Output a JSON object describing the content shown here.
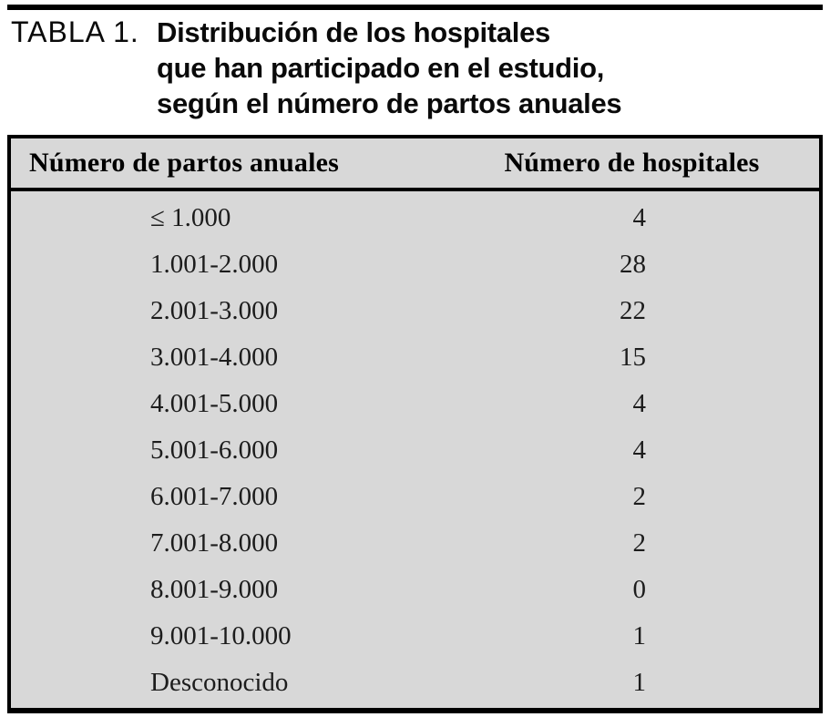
{
  "caption": {
    "label": "TABLA 1.",
    "title_lines": [
      "Distribución de los hospitales",
      "que han participado en el estudio,",
      "según el número de partos anuales"
    ]
  },
  "table": {
    "headers": [
      "Número de partos anuales",
      "Número de hospitales"
    ],
    "rows": [
      {
        "range": "≤ 1.000",
        "hospitals": 4
      },
      {
        "range": "1.001-2.000",
        "hospitals": 28
      },
      {
        "range": "2.001-3.000",
        "hospitals": 22
      },
      {
        "range": "3.001-4.000",
        "hospitals": 15
      },
      {
        "range": "4.001-5.000",
        "hospitals": 4
      },
      {
        "range": "5.001-6.000",
        "hospitals": 4
      },
      {
        "range": "6.001-7.000",
        "hospitals": 2
      },
      {
        "range": "7.001-8.000",
        "hospitals": 2
      },
      {
        "range": "8.001-9.000",
        "hospitals": 0
      },
      {
        "range": "9.001-10.000",
        "hospitals": 1
      },
      {
        "range": "Desconocido",
        "hospitals": 1
      }
    ],
    "colors": {
      "panel_background": "#d8d8d8",
      "rule": "#000000",
      "text": "#1c1c1c"
    }
  }
}
